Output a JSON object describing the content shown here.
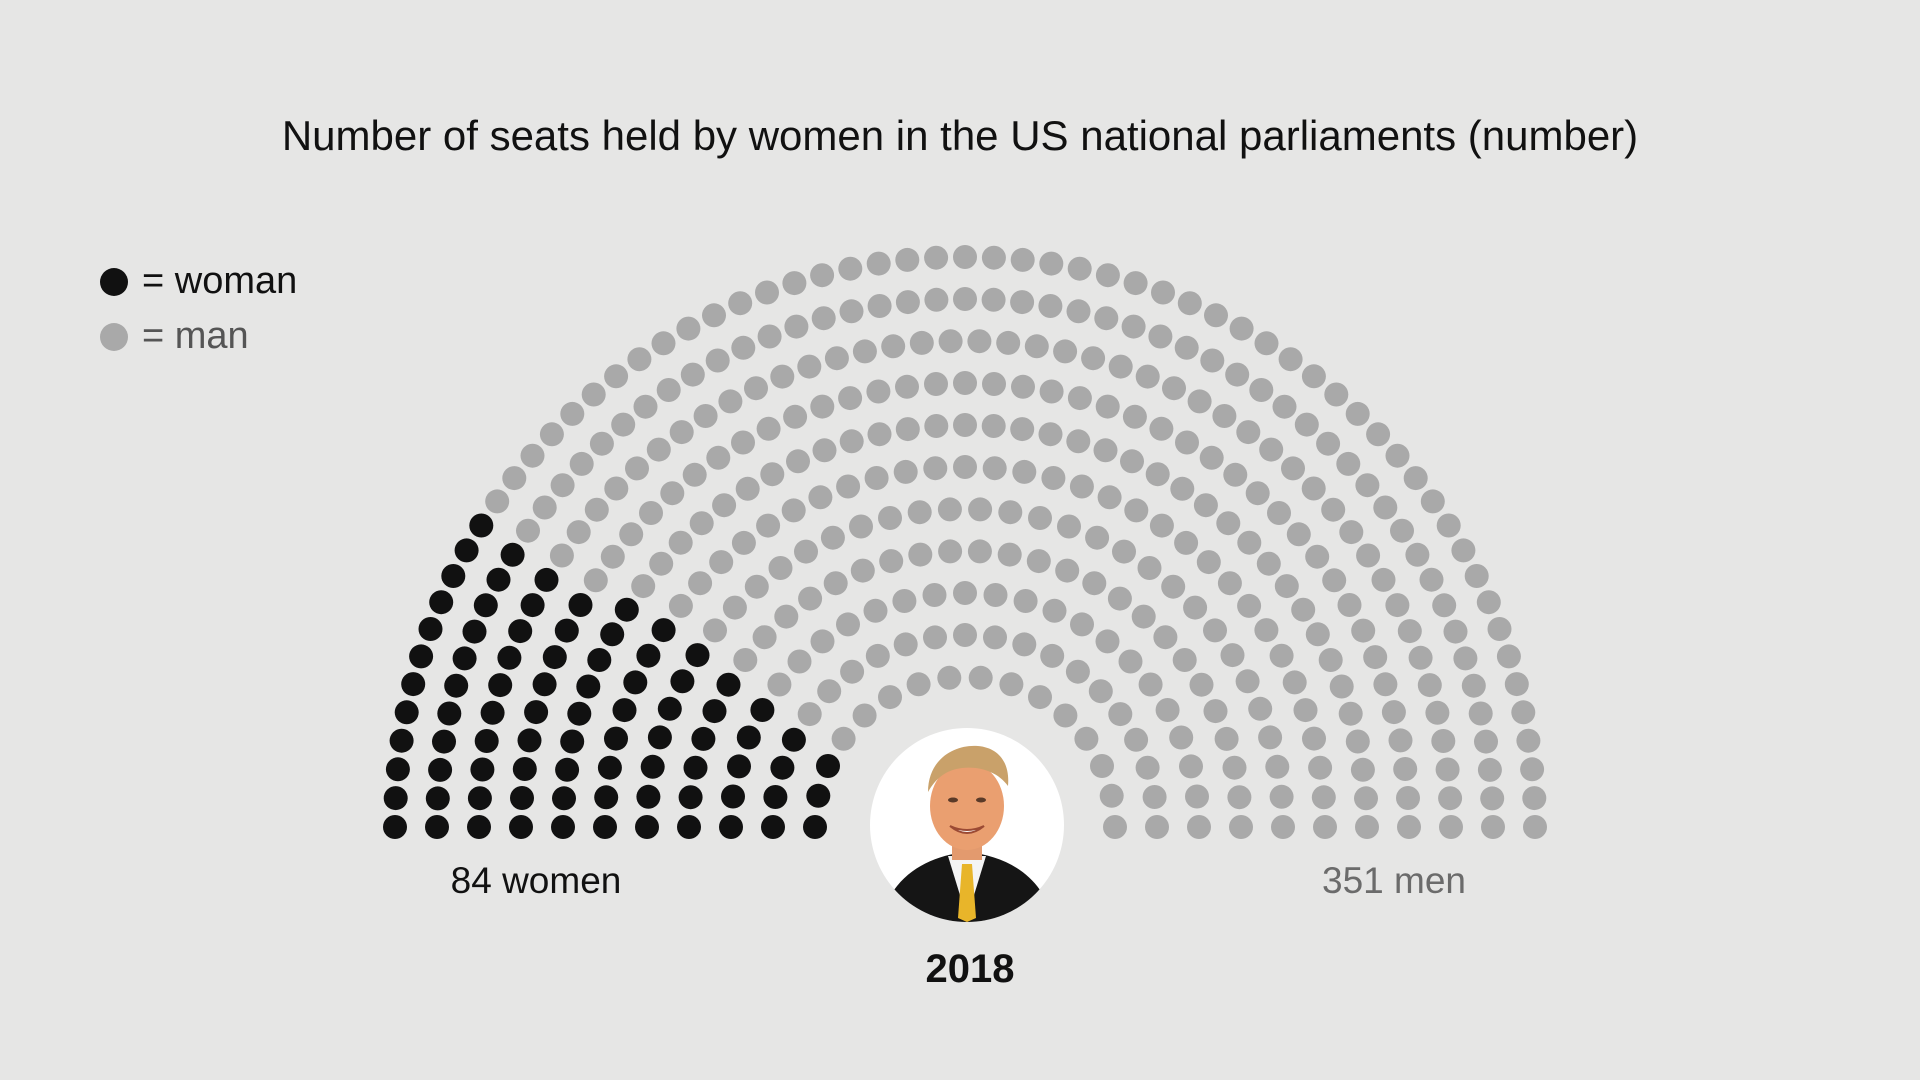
{
  "title": "Number of seats held by women in the US national parliaments (number)",
  "legend": {
    "woman_label": "= woman",
    "man_label": "= man"
  },
  "labels": {
    "women_count": "84 women",
    "men_count": "351 men",
    "year": "2018"
  },
  "colors": {
    "background": "#e6e6e5",
    "woman": "#111111",
    "man": "#a9a9a9"
  },
  "chart_data": {
    "type": "parliament",
    "title": "Number of seats held by women in the US national parliaments (number)",
    "year": "2018",
    "total_seats": 435,
    "series": [
      {
        "name": "woman",
        "value": 84,
        "color": "#111111"
      },
      {
        "name": "man",
        "value": 351,
        "color": "#a9a9a9"
      }
    ]
  }
}
